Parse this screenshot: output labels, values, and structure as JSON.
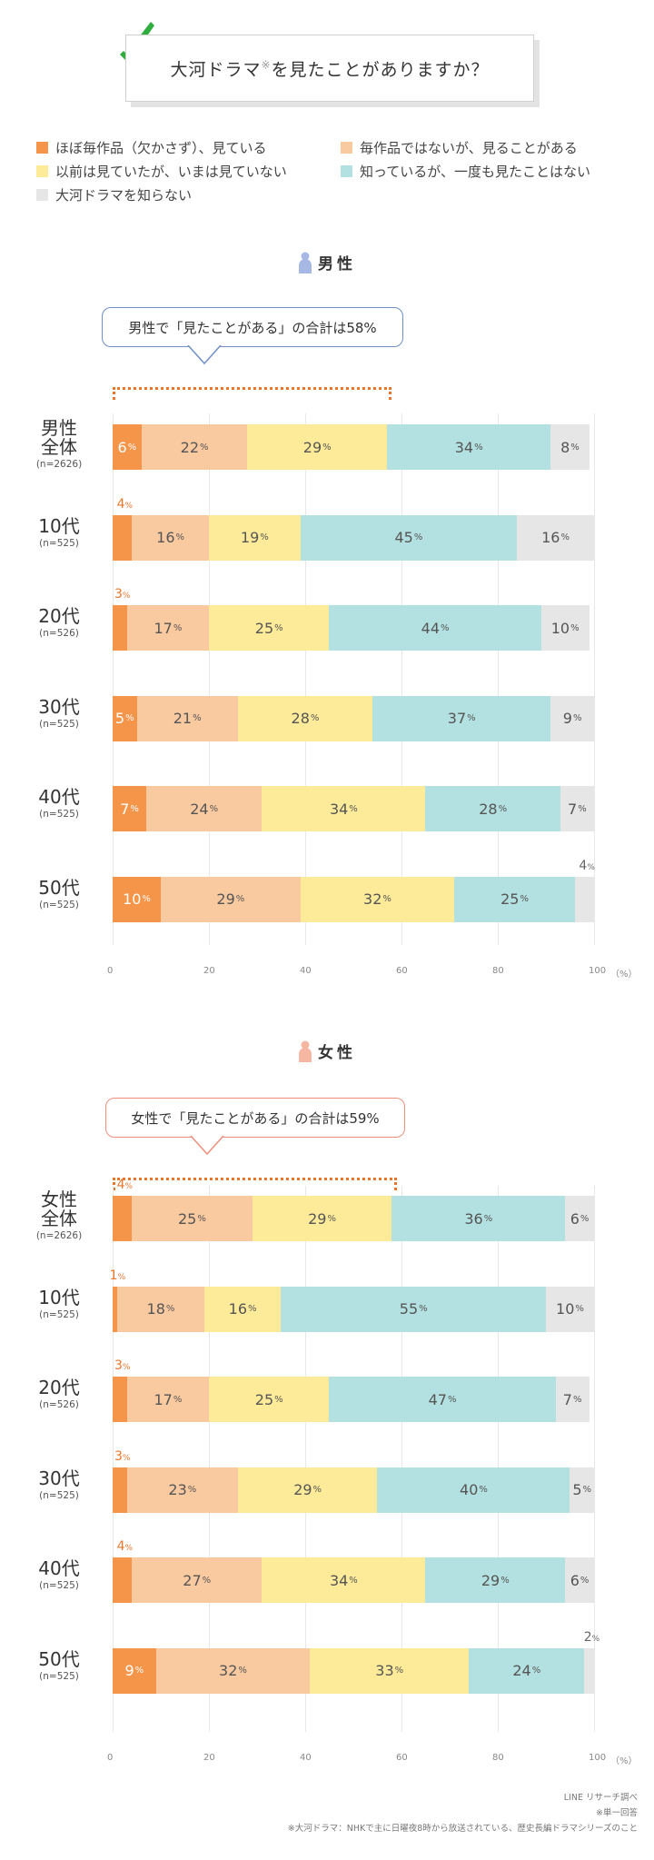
{
  "title": {
    "text": "大河ドラマ",
    "mark": "※",
    "suffix": "を見たことがありますか？"
  },
  "colors": [
    "#f5954a",
    "#f9c9a0",
    "#fdeb99",
    "#b3e0e0",
    "#e6e6e6"
  ],
  "legend": [
    "ほぼ毎作品（欠かさず）、見ている",
    "毎作品ではないが、見ることがある",
    "以前は見ていたが、いまは見ていない",
    "知っているが、一度も見たことはない",
    "大河ドラマを知らない"
  ],
  "chart_data": [
    {
      "type": "bar",
      "orientation": "horizontal-stacked",
      "heading": "男性",
      "callout": "男性で「見たことがある」の合計は58%",
      "axis": {
        "ticks": [
          0,
          20,
          40,
          60,
          80,
          100
        ],
        "unit": "（%）",
        "xlim": [
          0,
          100
        ]
      },
      "rows": [
        {
          "label": "男性\n全体",
          "n": "(n=2626)",
          "values": [
            6,
            22,
            29,
            34,
            8
          ]
        },
        {
          "label": "10代",
          "n": "(n=525)",
          "values": [
            4,
            16,
            19,
            45,
            16
          ]
        },
        {
          "label": "20代",
          "n": "(n=526)",
          "values": [
            3,
            17,
            25,
            44,
            10
          ]
        },
        {
          "label": "30代",
          "n": "(n=525)",
          "values": [
            5,
            21,
            28,
            37,
            9
          ]
        },
        {
          "label": "40代",
          "n": "(n=525)",
          "values": [
            7,
            24,
            34,
            28,
            7
          ]
        },
        {
          "label": "50代",
          "n": "(n=525)",
          "values": [
            10,
            29,
            32,
            25,
            4
          ]
        }
      ]
    },
    {
      "type": "bar",
      "orientation": "horizontal-stacked",
      "heading": "女性",
      "callout": "女性で「見たことがある」の合計は59%",
      "axis": {
        "ticks": [
          0,
          20,
          40,
          60,
          80,
          100
        ],
        "unit": "（%）",
        "xlim": [
          0,
          100
        ]
      },
      "rows": [
        {
          "label": "女性\n全体",
          "n": "(n=2626)",
          "values": [
            4,
            25,
            29,
            36,
            6
          ]
        },
        {
          "label": "10代",
          "n": "(n=525)",
          "values": [
            1,
            18,
            16,
            55,
            10
          ]
        },
        {
          "label": "20代",
          "n": "(n=526)",
          "values": [
            3,
            17,
            25,
            47,
            7
          ]
        },
        {
          "label": "30代",
          "n": "(n=525)",
          "values": [
            3,
            23,
            29,
            40,
            5
          ]
        },
        {
          "label": "40代",
          "n": "(n=525)",
          "values": [
            4,
            27,
            34,
            29,
            6
          ]
        },
        {
          "label": "50代",
          "n": "(n=525)",
          "values": [
            9,
            32,
            33,
            24,
            2
          ]
        }
      ]
    }
  ],
  "footnotes": [
    "LINE リサーチ調べ",
    "※単一回答",
    "※大河ドラマ：NHKで主に日曜夜8時から放送されている、歴史長編ドラマシリーズのこと"
  ]
}
